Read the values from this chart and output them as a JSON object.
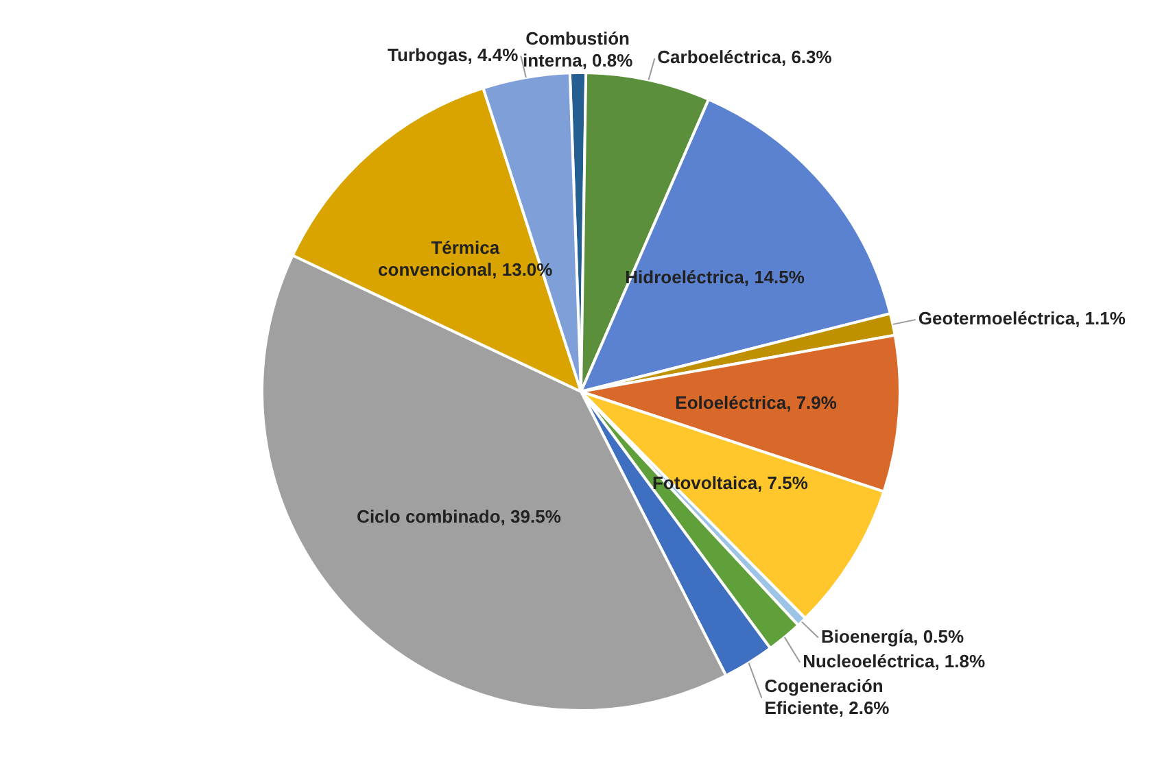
{
  "chart_data": {
    "type": "pie",
    "categories": [
      "Combustión interna",
      "Carboeléctrica",
      "Hidroeléctrica",
      "Geotermoeléctrica",
      "Eoloeléctrica",
      "Fotovoltaica",
      "Bioenergía",
      "Nucleoeléctrica",
      "Cogeneración Eficiente",
      "Ciclo combinado",
      "Térmica convencional",
      "Turbogas"
    ],
    "values": [
      0.8,
      6.3,
      14.5,
      1.1,
      7.9,
      7.5,
      0.5,
      1.8,
      2.6,
      39.5,
      13.0,
      4.4
    ],
    "value_labels": [
      "0.8%",
      "6.3%",
      "14.5%",
      "1.1%",
      "7.9%",
      "7.5%",
      "0.5%",
      "1.8%",
      "2.6%",
      "39.5%",
      "13.0%",
      "4.4%"
    ],
    "colors": [
      "#255e91",
      "#5b8f3c",
      "#5b82d0",
      "#bf9000",
      "#d9692a",
      "#ffc72c",
      "#9dc3e6",
      "#5fa03a",
      "#3f6fc0",
      "#a0a0a0",
      "#d9a300",
      "#7f9fd8"
    ],
    "legend": false
  }
}
